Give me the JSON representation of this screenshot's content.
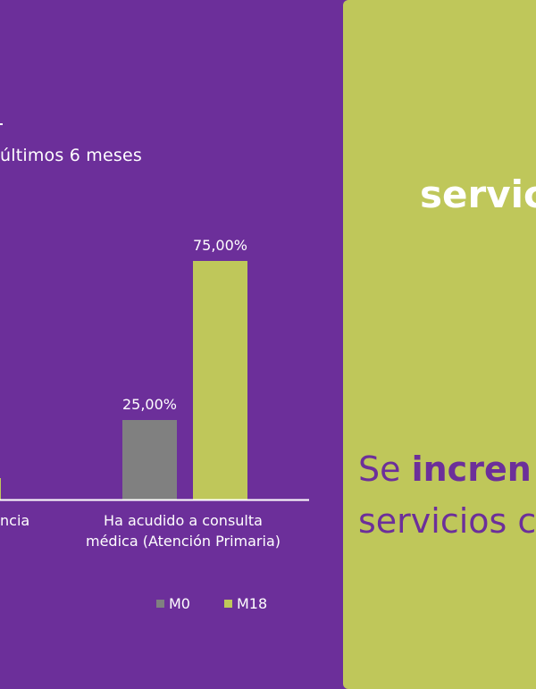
{
  "colors": {
    "background": "#6c2f9a",
    "panel": "#bfc75a",
    "m0": "#808080",
    "m18": "#bfc75a",
    "text_on_purple": "#ffffff",
    "text_on_green": "#6c2f9a"
  },
  "left": {
    "subtitle": "últimos 6 meses"
  },
  "chart_data": {
    "type": "bar",
    "subtitle": "últimos 6 meses",
    "categories": [
      "ncia",
      "Ha acudido a consulta médica (Atención Primaria)"
    ],
    "category_lines": {
      "first": [
        "ncia"
      ],
      "second": [
        "Ha acudido a consulta",
        "médica (Atención Primaria)"
      ]
    },
    "series": [
      {
        "name": "M0",
        "color": "#808080",
        "values": [
          null,
          25.0
        ],
        "labels": [
          "",
          "25,00%"
        ]
      },
      {
        "name": "M18",
        "color": "#bfc75a",
        "values": [
          null,
          75.0
        ],
        "labels": [
          "",
          "75,00%"
        ]
      }
    ],
    "ylim": [
      0,
      75
    ],
    "legend_position": "bottom"
  },
  "legend": {
    "m0": "M0",
    "m18": "M18"
  },
  "right": {
    "title": "servic",
    "body_line1_prefix": "Se ",
    "body_line1_bold": "incren",
    "body_line2": "servicios c"
  }
}
